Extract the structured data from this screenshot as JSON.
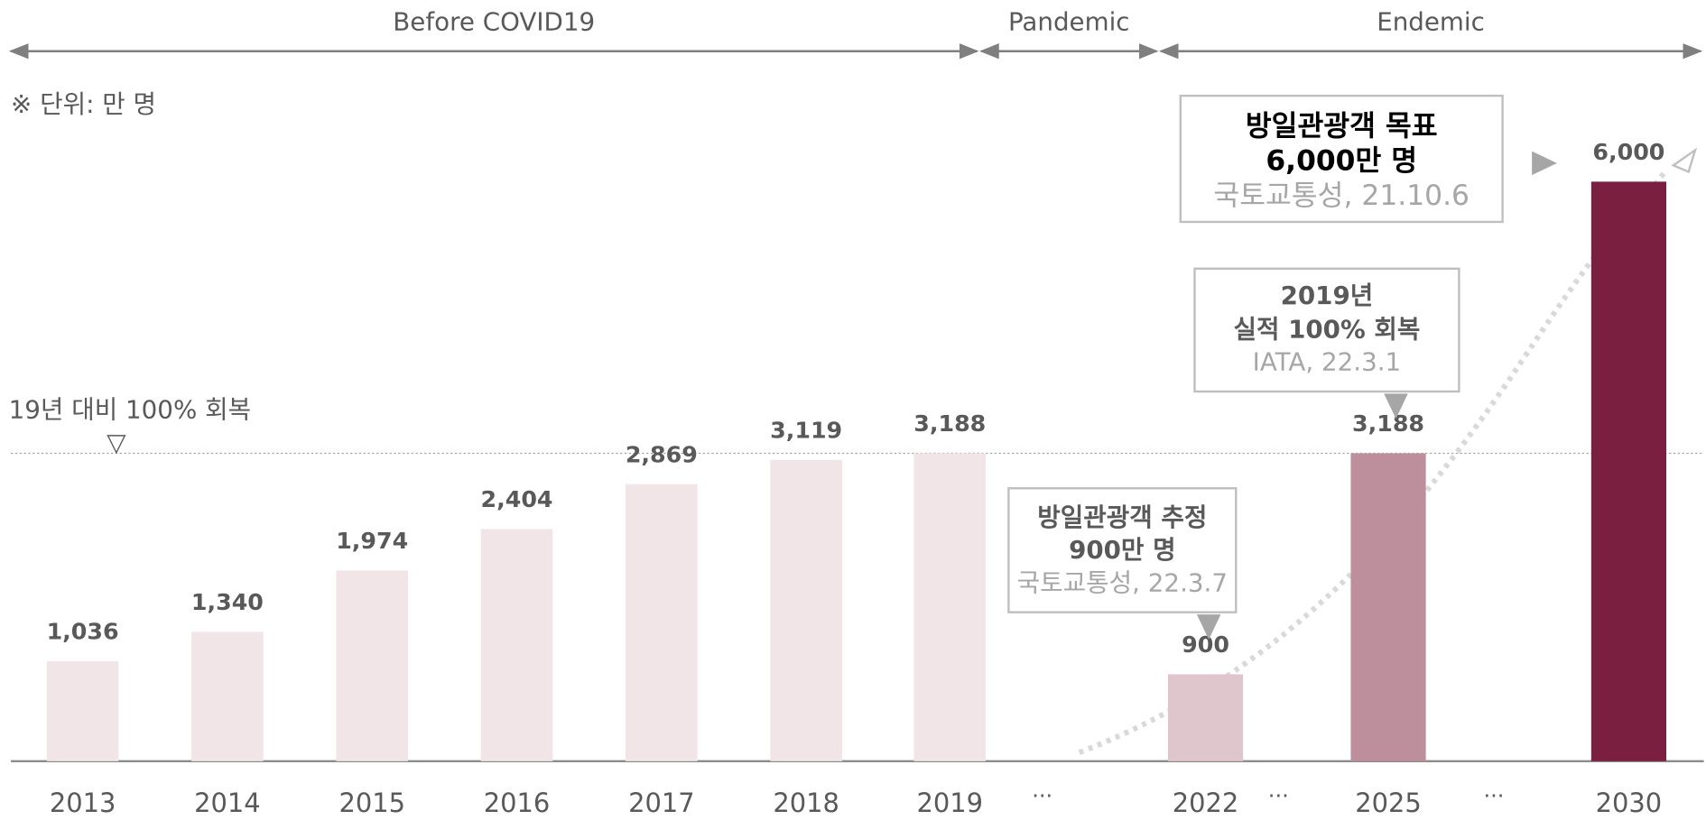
{
  "chart_data": {
    "type": "bar",
    "unit_note": "※ 단위: 만 명",
    "periods": [
      "Before COVID19",
      "Pandemic",
      "Endemic"
    ],
    "categories": [
      "2013",
      "2014",
      "2015",
      "2016",
      "2017",
      "2018",
      "2019",
      "...",
      "2022",
      "...",
      "2025",
      "...",
      "2030"
    ],
    "values": [
      1036,
      1340,
      1974,
      2404,
      2869,
      3119,
      3188,
      null,
      900,
      null,
      3188,
      null,
      6000
    ],
    "value_labels": [
      "1,036",
      "1,340",
      "1,974",
      "2,404",
      "2,869",
      "3,119",
      "3,188",
      null,
      "900",
      null,
      "3,188",
      null,
      "6,000"
    ],
    "colors": [
      "#f1e5e8",
      "#f1e5e8",
      "#f1e5e8",
      "#f1e5e8",
      "#f1e5e8",
      "#f1e5e8",
      "#f1e5e8",
      null,
      "#dfc6cd",
      null,
      "#bd8f9d",
      null,
      "#7b1f41"
    ],
    "ylim": [
      0,
      6000
    ],
    "reference_line": {
      "value": 3188,
      "label": "19년 대비 100% 회복",
      "marker": "▽"
    },
    "annotations": [
      {
        "lines": [
          "방일관광객 목표",
          "6,000만 명"
        ],
        "source": "국토교통성, 21.10.6"
      },
      {
        "lines": [
          "2019년",
          "실적 100% 회복"
        ],
        "source": "IATA, 22.3.1"
      },
      {
        "lines": [
          "방일관광객 추정",
          "900만 명"
        ],
        "source": "국토교통성, 22.3.7"
      }
    ]
  }
}
